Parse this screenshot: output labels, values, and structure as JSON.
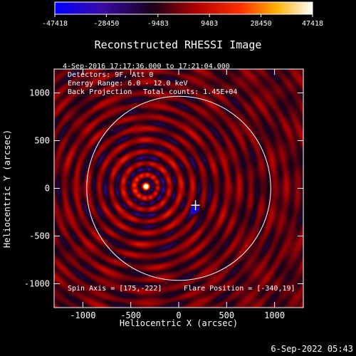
{
  "chart_data": {
    "type": "heatmap",
    "title": "Reconstructed RHESSI Image",
    "xlabel": "Heliocentric X (arcsec)",
    "ylabel": "Heliocentric Y (arcsec)",
    "xlim": [
      -1300,
      1300
    ],
    "ylim": [
      -1250,
      1250
    ],
    "xticks": [
      -1000,
      -500,
      0,
      500,
      1000
    ],
    "yticks": [
      -1000,
      -500,
      0,
      500,
      1000
    ],
    "colorbar": {
      "min": -47418,
      "max": 47418,
      "tick_labels": [
        "-47418",
        "-28450",
        "-9483",
        "9483",
        "28450",
        "47418"
      ],
      "palette": [
        "#0000ff",
        "#3b0aa0",
        "#200020",
        "#c00000",
        "#ff5000",
        "#ffc400",
        "#ffffff"
      ]
    },
    "solar_disk": {
      "center": [
        0,
        0
      ],
      "radius": 960
    },
    "peak_source": {
      "x": -340,
      "y": 19
    },
    "negative_source": {
      "x": 175,
      "y": -222
    },
    "annotations": {
      "time_range": "4-Sep-2016 17:17:36.000 to 17:21:04.000",
      "detectors": "Detectors: 9F, Att 0",
      "energy_range": "Energy Range: 6.0 - 12.0 keV",
      "method": "Back Projection",
      "total_counts": "Total counts: 1.45E+04",
      "spin_axis": "Spin Axis = [175,-222]",
      "flare_position": "Flare Position = [-340,19]"
    },
    "footer_timestamp": "6-Sep-2022 05:43",
    "grid": false
  }
}
